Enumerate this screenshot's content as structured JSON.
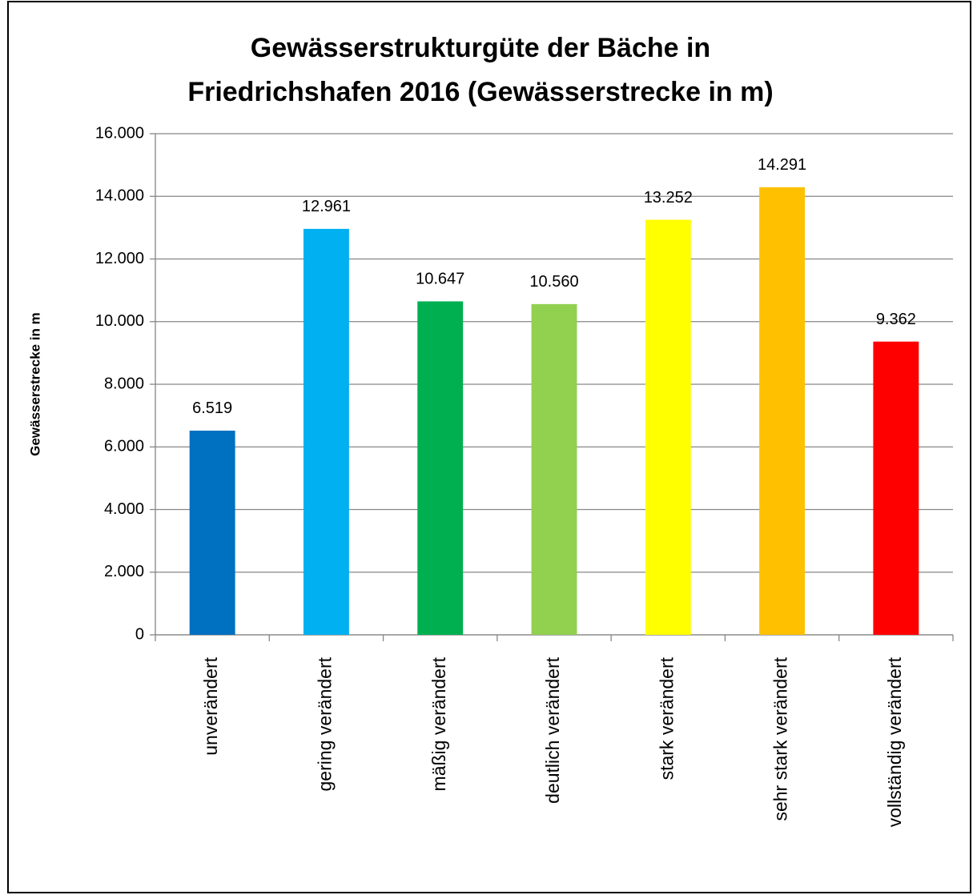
{
  "chart_data": {
    "type": "bar",
    "title": [
      "Gewässerstrukturgüte der Bäche in",
      "Friedrichshafen 2016 (Gewässerstrecke in m)"
    ],
    "y_label": "Gewässerstrecke in m",
    "categories": [
      "unverändert",
      "gering verändert",
      "mäßig verändert",
      "deutlich verändert",
      "stark verändert",
      "sehr stark verändert",
      "vollständig verändert"
    ],
    "values": [
      6519,
      12961,
      10647,
      10560,
      13252,
      14291,
      9362
    ],
    "value_labels": [
      "6.519",
      "12.961",
      "10.647",
      "10.560",
      "13.252",
      "14.291",
      "9.362"
    ],
    "colors": [
      "#0070c0",
      "#00b0f0",
      "#00b050",
      "#92d050",
      "#ffff00",
      "#ffc000",
      "#ff0000"
    ],
    "ylim": [
      0,
      16000
    ],
    "yticks": [
      0,
      {
        "value": 2000,
        "label": "2.000"
      },
      {
        "value": 4000,
        "label": "4.000"
      },
      {
        "value": 6000,
        "label": "6.000"
      },
      {
        "value": 8000,
        "label": "8.000"
      },
      {
        "value": 10000,
        "label": "10.000"
      },
      {
        "value": 12000,
        "label": "12.000"
      },
      {
        "value": 14000,
        "label": "14.000"
      },
      {
        "value": 16000,
        "label": "16.000"
      }
    ],
    "grid": true
  }
}
